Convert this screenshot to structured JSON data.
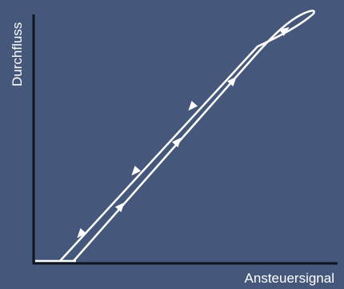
{
  "diagram": {
    "y_axis_label": "Durchfluss",
    "x_axis_label": "Ansteuersignal",
    "colors": {
      "background": "#45577a",
      "axis": "#0f1420",
      "curve": "#ffffff"
    }
  }
}
